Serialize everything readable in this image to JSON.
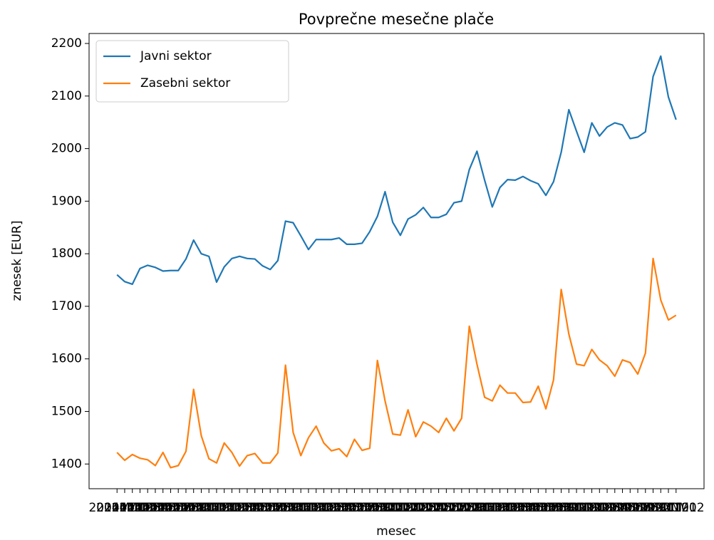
{
  "chart_data": {
    "type": "line",
    "title": "Povprečne mesečne plače",
    "x_label": "mesec",
    "y_label": "znesek [EUR]",
    "categories": [
      "2014M01",
      "2014M02",
      "2014M03",
      "2014M04",
      "2014M05",
      "2014M06",
      "2014M07",
      "2014M08",
      "2014M09",
      "2014M10",
      "2014M11",
      "2014M12",
      "2015M01",
      "2015M02",
      "2015M03",
      "2015M04",
      "2015M05",
      "2015M06",
      "2015M07",
      "2015M08",
      "2015M09",
      "2015M10",
      "2015M11",
      "2015M12",
      "2016M01",
      "2016M02",
      "2016M03",
      "2016M04",
      "2016M05",
      "2016M06",
      "2016M07",
      "2016M08",
      "2016M09",
      "2016M10",
      "2016M11",
      "2016M12",
      "2017M01",
      "2017M02",
      "2017M03",
      "2017M04",
      "2017M05",
      "2017M06",
      "2017M07",
      "2017M08",
      "2017M09",
      "2017M10",
      "2017M11",
      "2017M12",
      "2018M01",
      "2018M02",
      "2018M03",
      "2018M04",
      "2018M05",
      "2018M06",
      "2018M07",
      "2018M08",
      "2018M09",
      "2018M10",
      "2018M11",
      "2018M12",
      "2019M01",
      "2019M02",
      "2019M03",
      "2019M04",
      "2019M05",
      "2019M06",
      "2019M07",
      "2019M08",
      "2019M09",
      "2019M10",
      "2019M11",
      "2019M12",
      "2020M01",
      "2020M02"
    ],
    "series": [
      {
        "name": "Javni sektor",
        "color": "#1f77b4",
        "values": [
          1760,
          1747,
          1742,
          1772,
          1778,
          1774,
          1767,
          1768,
          1768,
          1790,
          1826,
          1800,
          1795,
          1746,
          1775,
          1791,
          1795,
          1791,
          1790,
          1777,
          1770,
          1787,
          1862,
          1859,
          1834,
          1808,
          1827,
          1827,
          1827,
          1830,
          1818,
          1818,
          1820,
          1842,
          1871,
          1918,
          1860,
          1835,
          1866,
          1874,
          1888,
          1869,
          1869,
          1875,
          1897,
          1900,
          1960,
          1995,
          1940,
          1889,
          1926,
          1941,
          1940,
          1947,
          1939,
          1933,
          1911,
          1937,
          1993,
          2074,
          2033,
          1993,
          2049,
          2024,
          2041,
          2049,
          2045,
          2019,
          2022,
          2032,
          2137,
          2176,
          2098,
          2055
        ]
      },
      {
        "name": "Zasebni sektor",
        "color": "#ff7f0e",
        "values": [
          1422,
          1407,
          1418,
          1411,
          1408,
          1397,
          1422,
          1393,
          1397,
          1424,
          1542,
          1454,
          1410,
          1402,
          1440,
          1422,
          1396,
          1416,
          1420,
          1402,
          1402,
          1421,
          1588,
          1460,
          1416,
          1450,
          1472,
          1440,
          1425,
          1429,
          1414,
          1447,
          1426,
          1430,
          1597,
          1520,
          1457,
          1455,
          1503,
          1452,
          1480,
          1472,
          1460,
          1487,
          1463,
          1487,
          1662,
          1590,
          1527,
          1520,
          1550,
          1535,
          1535,
          1517,
          1518,
          1548,
          1505,
          1560,
          1732,
          1647,
          1590,
          1587,
          1618,
          1598,
          1587,
          1567,
          1598,
          1593,
          1571,
          1611,
          1791,
          1712,
          1674,
          1683
        ]
      }
    ],
    "ylim": [
      1353,
      2219
    ],
    "yticks": [
      1400,
      1500,
      1600,
      1700,
      1800,
      1900,
      2000,
      2100,
      2200
    ],
    "legend": "upper left"
  }
}
